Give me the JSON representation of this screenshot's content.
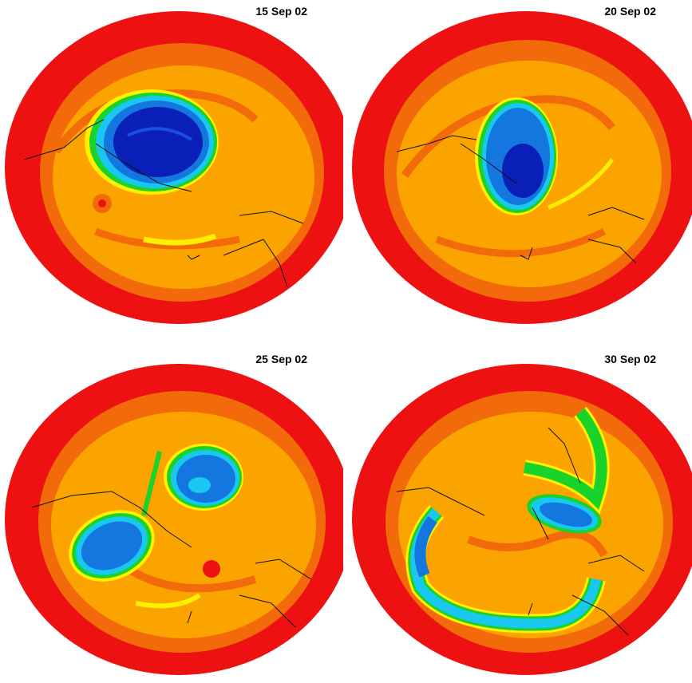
{
  "panels": [
    {
      "date": "15 Sep 02"
    },
    {
      "date": "20 Sep 02"
    },
    {
      "date": "25 Sep 02"
    },
    {
      "date": "30 Sep 02"
    }
  ],
  "colors": {
    "outer": "#ee1111",
    "band_dark": "#f26a0a",
    "orange": "#fba400",
    "yellow": "#ffef00",
    "green": "#19d22a",
    "cyan": "#18c8f0",
    "blue": "#1477e0",
    "deep_blue": "#0a1fb8",
    "coast": "#111111"
  }
}
